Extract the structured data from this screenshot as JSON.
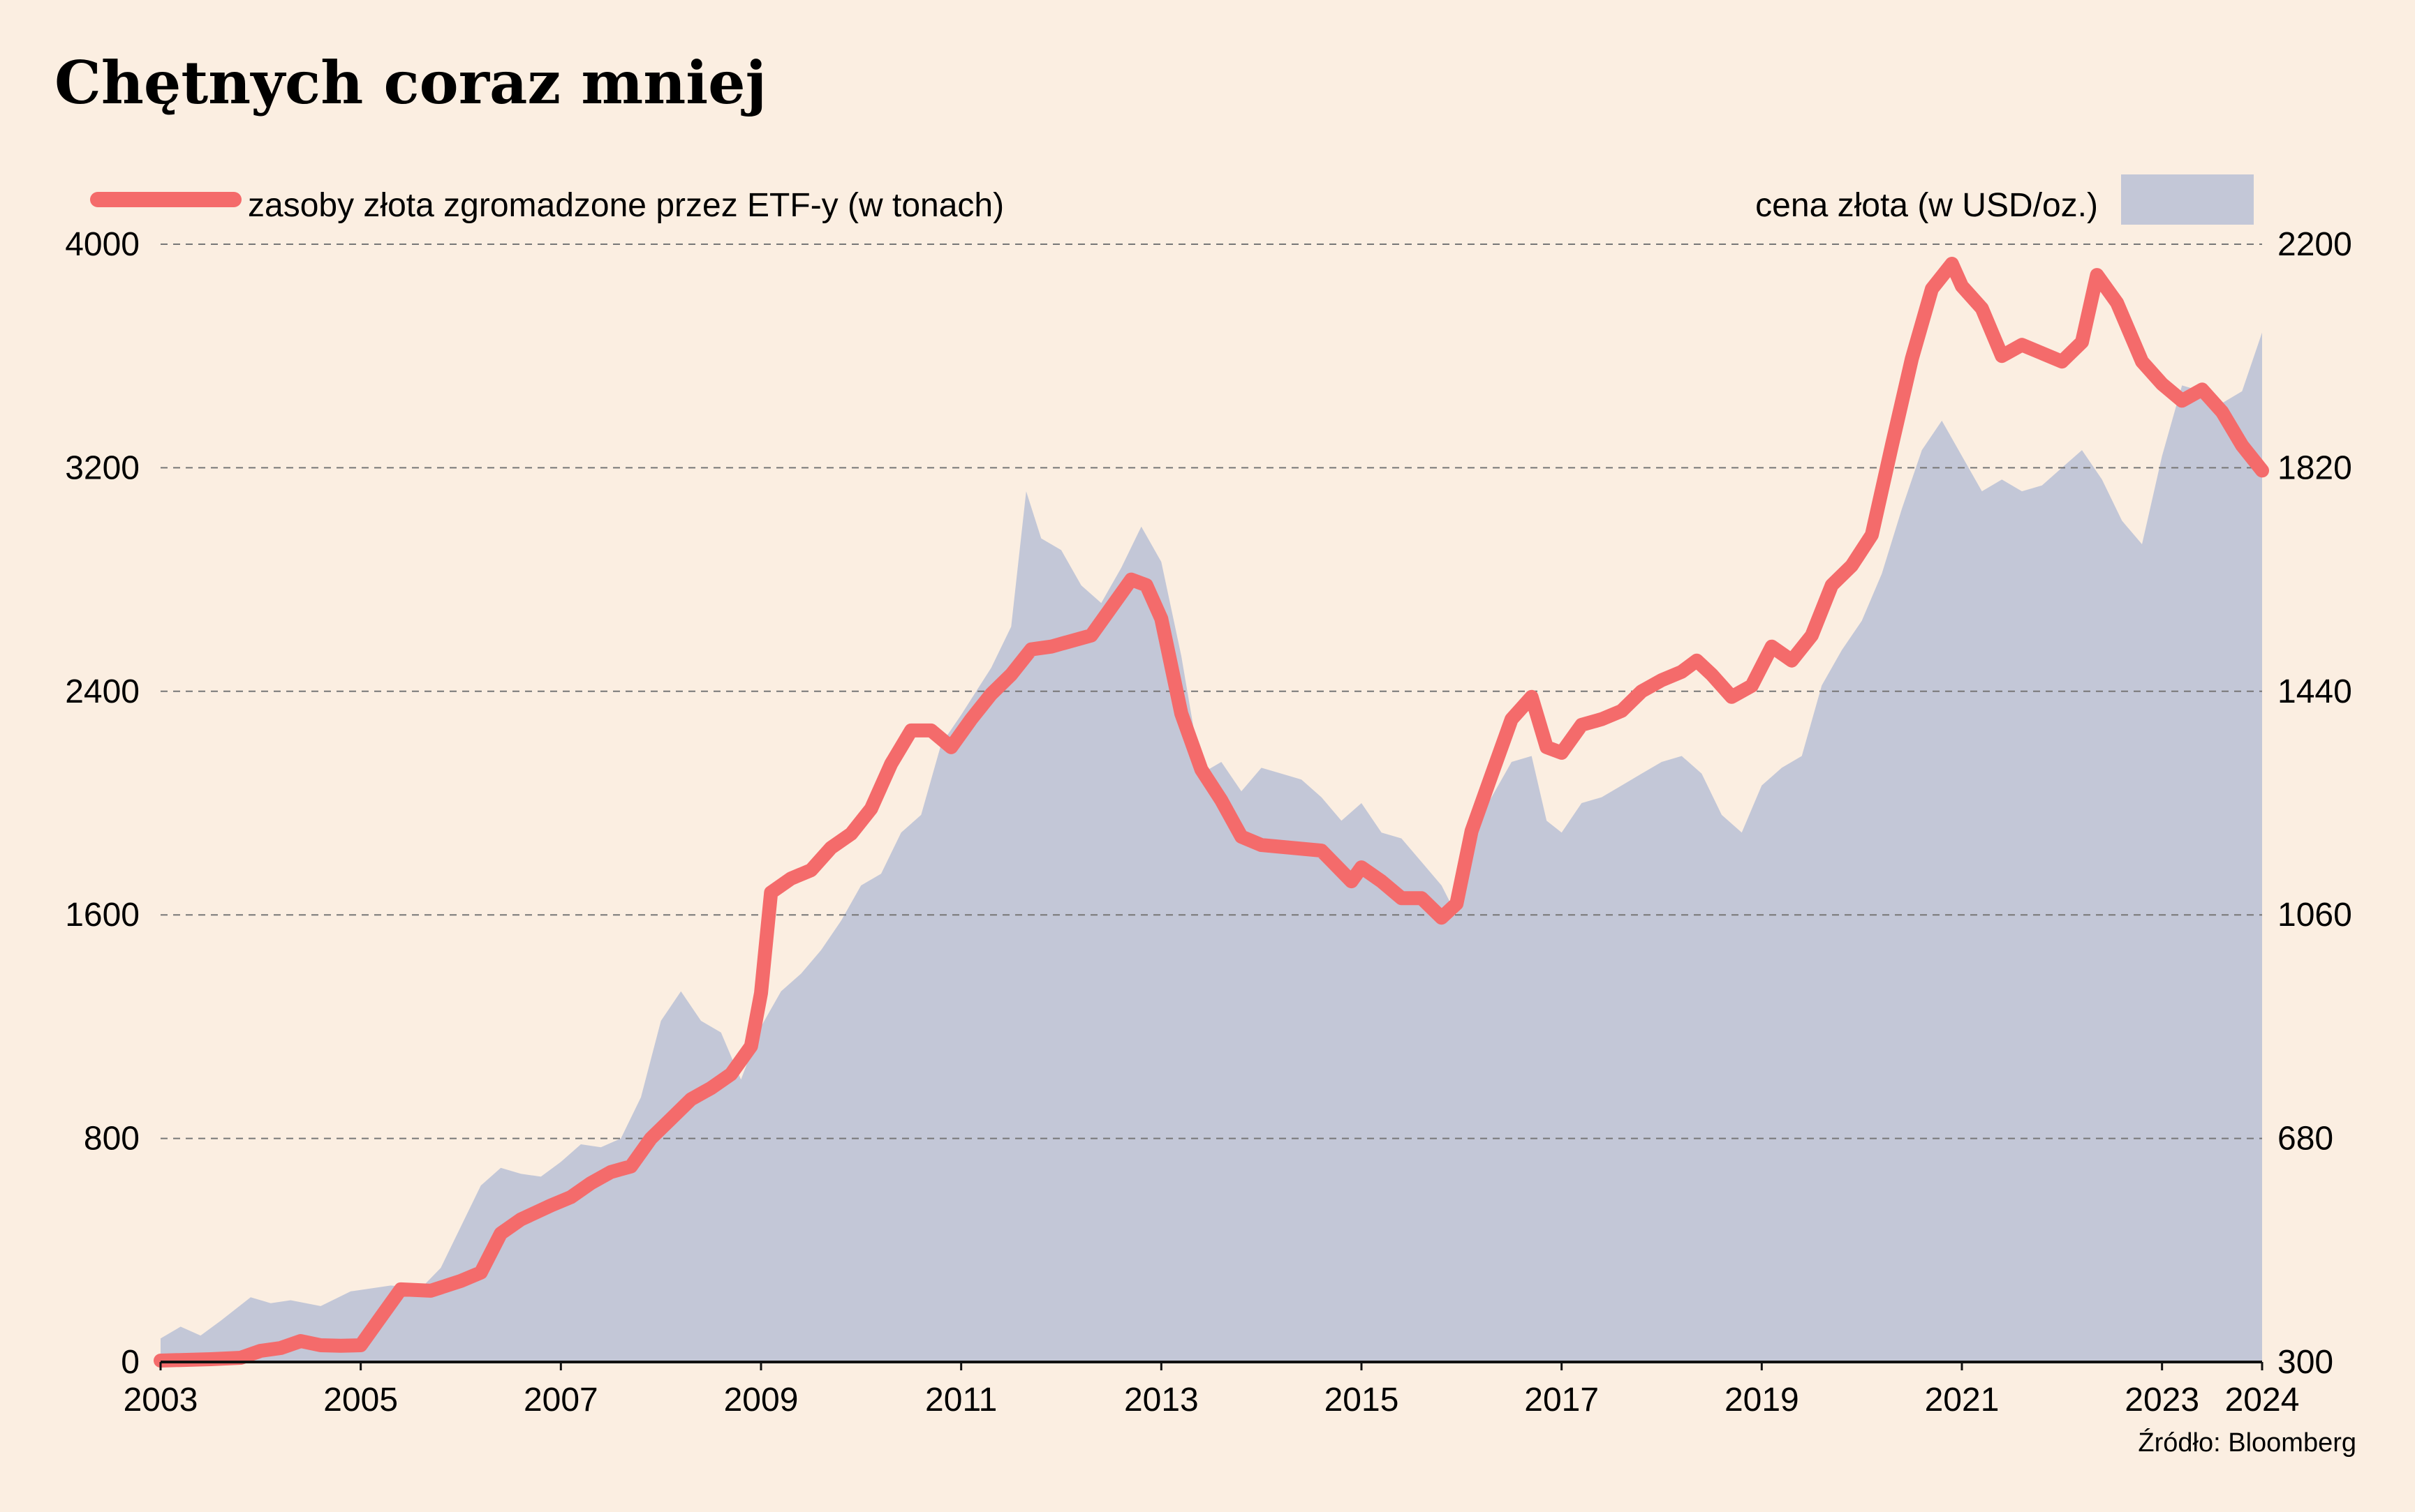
{
  "chart_data": {
    "type": "line+area",
    "title": "Chętnych coraz mniej",
    "source": "Źródło: Bloomberg",
    "legend": {
      "line_label": "zasoby złota zgromadzone przez ETF-y (w tonach)",
      "area_label": "cena złota (w USD/oz.)",
      "placement": "top"
    },
    "grid": true,
    "x_range": [
      2003.0,
      2024.0
    ],
    "x_tick_labels": [
      "2003",
      "2005",
      "2007",
      "2009",
      "2011",
      "2013",
      "2015",
      "2017",
      "2019",
      "2021",
      "2023",
      "2024"
    ],
    "x_ticks": [
      2003,
      2005,
      2007,
      2009,
      2011,
      2013,
      2015,
      2017,
      2019,
      2021,
      2023,
      2024
    ],
    "y_left": {
      "range": [
        0,
        4000
      ],
      "ticks": [
        "0",
        "800",
        "1600",
        "2400",
        "3200",
        "4000"
      ]
    },
    "y_right": {
      "range": [
        300,
        2200
      ],
      "ticks": [
        "300",
        "680",
        "1060",
        "1440",
        "1820",
        "2200"
      ]
    },
    "colors": {
      "line": "#f46b6b",
      "area": "#c3c7d7",
      "background": "#fbeee1",
      "grid": "#777777"
    },
    "series": [
      {
        "name": "zasoby złota zgromadzone przez ETF-y (w tonach)",
        "axis": "left",
        "kind": "line",
        "points": [
          [
            2003.0,
            5
          ],
          [
            2003.5,
            10
          ],
          [
            2003.8,
            15
          ],
          [
            2004.0,
            40
          ],
          [
            2004.2,
            50
          ],
          [
            2004.4,
            75
          ],
          [
            2004.6,
            60
          ],
          [
            2004.8,
            58
          ],
          [
            2005.0,
            60
          ],
          [
            2005.2,
            160
          ],
          [
            2005.4,
            260
          ],
          [
            2005.7,
            255
          ],
          [
            2006.0,
            290
          ],
          [
            2006.2,
            320
          ],
          [
            2006.4,
            460
          ],
          [
            2006.6,
            510
          ],
          [
            2006.9,
            560
          ],
          [
            2007.1,
            590
          ],
          [
            2007.3,
            640
          ],
          [
            2007.5,
            680
          ],
          [
            2007.7,
            700
          ],
          [
            2007.9,
            800
          ],
          [
            2008.1,
            870
          ],
          [
            2008.3,
            940
          ],
          [
            2008.5,
            980
          ],
          [
            2008.7,
            1030
          ],
          [
            2008.9,
            1130
          ],
          [
            2009.0,
            1320
          ],
          [
            2009.1,
            1680
          ],
          [
            2009.3,
            1730
          ],
          [
            2009.5,
            1760
          ],
          [
            2009.7,
            1840
          ],
          [
            2009.9,
            1890
          ],
          [
            2010.1,
            1980
          ],
          [
            2010.3,
            2140
          ],
          [
            2010.5,
            2260
          ],
          [
            2010.7,
            2260
          ],
          [
            2010.9,
            2200
          ],
          [
            2011.1,
            2300
          ],
          [
            2011.3,
            2390
          ],
          [
            2011.5,
            2460
          ],
          [
            2011.7,
            2550
          ],
          [
            2011.9,
            2560
          ],
          [
            2012.1,
            2580
          ],
          [
            2012.3,
            2600
          ],
          [
            2012.5,
            2700
          ],
          [
            2012.7,
            2800
          ],
          [
            2012.85,
            2780
          ],
          [
            2013.0,
            2660
          ],
          [
            2013.2,
            2320
          ],
          [
            2013.4,
            2120
          ],
          [
            2013.6,
            2010
          ],
          [
            2013.8,
            1880
          ],
          [
            2014.0,
            1850
          ],
          [
            2014.3,
            1840
          ],
          [
            2014.6,
            1830
          ],
          [
            2014.9,
            1720
          ],
          [
            2015.0,
            1770
          ],
          [
            2015.2,
            1720
          ],
          [
            2015.4,
            1660
          ],
          [
            2015.6,
            1660
          ],
          [
            2015.8,
            1590
          ],
          [
            2015.95,
            1640
          ],
          [
            2016.1,
            1900
          ],
          [
            2016.3,
            2100
          ],
          [
            2016.5,
            2300
          ],
          [
            2016.7,
            2380
          ],
          [
            2016.85,
            2200
          ],
          [
            2017.0,
            2180
          ],
          [
            2017.2,
            2280
          ],
          [
            2017.4,
            2300
          ],
          [
            2017.6,
            2330
          ],
          [
            2017.8,
            2400
          ],
          [
            2018.0,
            2440
          ],
          [
            2018.2,
            2470
          ],
          [
            2018.35,
            2510
          ],
          [
            2018.5,
            2460
          ],
          [
            2018.7,
            2380
          ],
          [
            2018.9,
            2420
          ],
          [
            2019.1,
            2560
          ],
          [
            2019.3,
            2510
          ],
          [
            2019.5,
            2600
          ],
          [
            2019.7,
            2780
          ],
          [
            2019.9,
            2850
          ],
          [
            2020.1,
            2960
          ],
          [
            2020.3,
            3280
          ],
          [
            2020.5,
            3590
          ],
          [
            2020.7,
            3840
          ],
          [
            2020.9,
            3930
          ],
          [
            2021.0,
            3850
          ],
          [
            2021.2,
            3770
          ],
          [
            2021.4,
            3600
          ],
          [
            2021.6,
            3640
          ],
          [
            2021.8,
            3610
          ],
          [
            2022.0,
            3580
          ],
          [
            2022.2,
            3650
          ],
          [
            2022.35,
            3890
          ],
          [
            2022.55,
            3790
          ],
          [
            2022.8,
            3580
          ],
          [
            2023.0,
            3500
          ],
          [
            2023.2,
            3440
          ],
          [
            2023.4,
            3480
          ],
          [
            2023.6,
            3400
          ],
          [
            2023.8,
            3280
          ],
          [
            2024.0,
            3190
          ]
        ]
      },
      {
        "name": "cena złota (w USD/oz.)",
        "axis": "right",
        "kind": "area",
        "points": [
          [
            2003.0,
            340
          ],
          [
            2003.2,
            360
          ],
          [
            2003.4,
            345
          ],
          [
            2003.6,
            370
          ],
          [
            2003.9,
            410
          ],
          [
            2004.1,
            400
          ],
          [
            2004.3,
            405
          ],
          [
            2004.6,
            395
          ],
          [
            2004.9,
            420
          ],
          [
            2005.1,
            425
          ],
          [
            2005.3,
            430
          ],
          [
            2005.6,
            425
          ],
          [
            2005.8,
            460
          ],
          [
            2006.0,
            530
          ],
          [
            2006.2,
            600
          ],
          [
            2006.4,
            630
          ],
          [
            2006.6,
            620
          ],
          [
            2006.8,
            615
          ],
          [
            2007.0,
            640
          ],
          [
            2007.2,
            670
          ],
          [
            2007.4,
            665
          ],
          [
            2007.6,
            680
          ],
          [
            2007.8,
            750
          ],
          [
            2008.0,
            880
          ],
          [
            2008.2,
            930
          ],
          [
            2008.4,
            880
          ],
          [
            2008.6,
            860
          ],
          [
            2008.8,
            780
          ],
          [
            2009.0,
            870
          ],
          [
            2009.2,
            930
          ],
          [
            2009.4,
            960
          ],
          [
            2009.6,
            1000
          ],
          [
            2009.8,
            1050
          ],
          [
            2010.0,
            1110
          ],
          [
            2010.2,
            1130
          ],
          [
            2010.4,
            1200
          ],
          [
            2010.6,
            1230
          ],
          [
            2010.8,
            1350
          ],
          [
            2011.0,
            1400
          ],
          [
            2011.3,
            1480
          ],
          [
            2011.5,
            1550
          ],
          [
            2011.65,
            1780
          ],
          [
            2011.8,
            1700
          ],
          [
            2012.0,
            1680
          ],
          [
            2012.2,
            1620
          ],
          [
            2012.4,
            1590
          ],
          [
            2012.6,
            1650
          ],
          [
            2012.8,
            1720
          ],
          [
            2013.0,
            1660
          ],
          [
            2013.2,
            1500
          ],
          [
            2013.4,
            1300
          ],
          [
            2013.6,
            1320
          ],
          [
            2013.8,
            1270
          ],
          [
            2014.0,
            1310
          ],
          [
            2014.2,
            1300
          ],
          [
            2014.4,
            1290
          ],
          [
            2014.6,
            1260
          ],
          [
            2014.8,
            1220
          ],
          [
            2015.0,
            1250
          ],
          [
            2015.2,
            1200
          ],
          [
            2015.4,
            1190
          ],
          [
            2015.6,
            1150
          ],
          [
            2015.8,
            1110
          ],
          [
            2015.95,
            1060
          ],
          [
            2016.1,
            1200
          ],
          [
            2016.3,
            1260
          ],
          [
            2016.5,
            1320
          ],
          [
            2016.7,
            1330
          ],
          [
            2016.85,
            1220
          ],
          [
            2017.0,
            1200
          ],
          [
            2017.2,
            1250
          ],
          [
            2017.4,
            1260
          ],
          [
            2017.6,
            1280
          ],
          [
            2017.8,
            1300
          ],
          [
            2018.0,
            1320
          ],
          [
            2018.2,
            1330
          ],
          [
            2018.4,
            1300
          ],
          [
            2018.6,
            1230
          ],
          [
            2018.8,
            1200
          ],
          [
            2019.0,
            1280
          ],
          [
            2019.2,
            1310
          ],
          [
            2019.4,
            1330
          ],
          [
            2019.6,
            1450
          ],
          [
            2019.8,
            1510
          ],
          [
            2020.0,
            1560
          ],
          [
            2020.2,
            1640
          ],
          [
            2020.4,
            1750
          ],
          [
            2020.6,
            1850
          ],
          [
            2020.8,
            1900
          ],
          [
            2021.0,
            1840
          ],
          [
            2021.2,
            1780
          ],
          [
            2021.4,
            1800
          ],
          [
            2021.6,
            1780
          ],
          [
            2021.8,
            1790
          ],
          [
            2022.0,
            1820
          ],
          [
            2022.2,
            1850
          ],
          [
            2022.4,
            1800
          ],
          [
            2022.6,
            1730
          ],
          [
            2022.8,
            1690
          ],
          [
            2023.0,
            1840
          ],
          [
            2023.2,
            1960
          ],
          [
            2023.4,
            1950
          ],
          [
            2023.6,
            1930
          ],
          [
            2023.8,
            1950
          ],
          [
            2024.0,
            2050
          ]
        ]
      }
    ]
  }
}
